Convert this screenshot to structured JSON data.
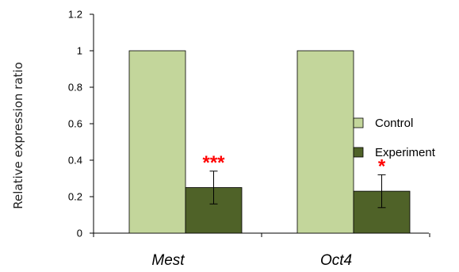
{
  "chart_data": {
    "type": "bar",
    "title": "",
    "xlabel": "",
    "ylabel": "Relative expression ratio",
    "ylim": [
      0,
      1.2
    ],
    "yticks": [
      "0",
      "0.2",
      "0.4",
      "0.6",
      "0.8",
      "1",
      "1.2"
    ],
    "categories": [
      "Mest",
      "Oct4"
    ],
    "series": [
      {
        "name": "Control",
        "values": [
          1.0,
          1.0
        ],
        "color": "#c3d69b"
      },
      {
        "name": "Experiment",
        "values": [
          0.25,
          0.23
        ],
        "errors": [
          0.09,
          0.09
        ],
        "color": "#4f6228"
      }
    ],
    "annotations": [
      {
        "category": "Mest",
        "series": "Experiment",
        "text": "***",
        "color": "#ff0000"
      },
      {
        "category": "Oct4",
        "series": "Experiment",
        "text": "*",
        "color": "#ff0000"
      }
    ],
    "legend_position": "right",
    "grid": false
  }
}
